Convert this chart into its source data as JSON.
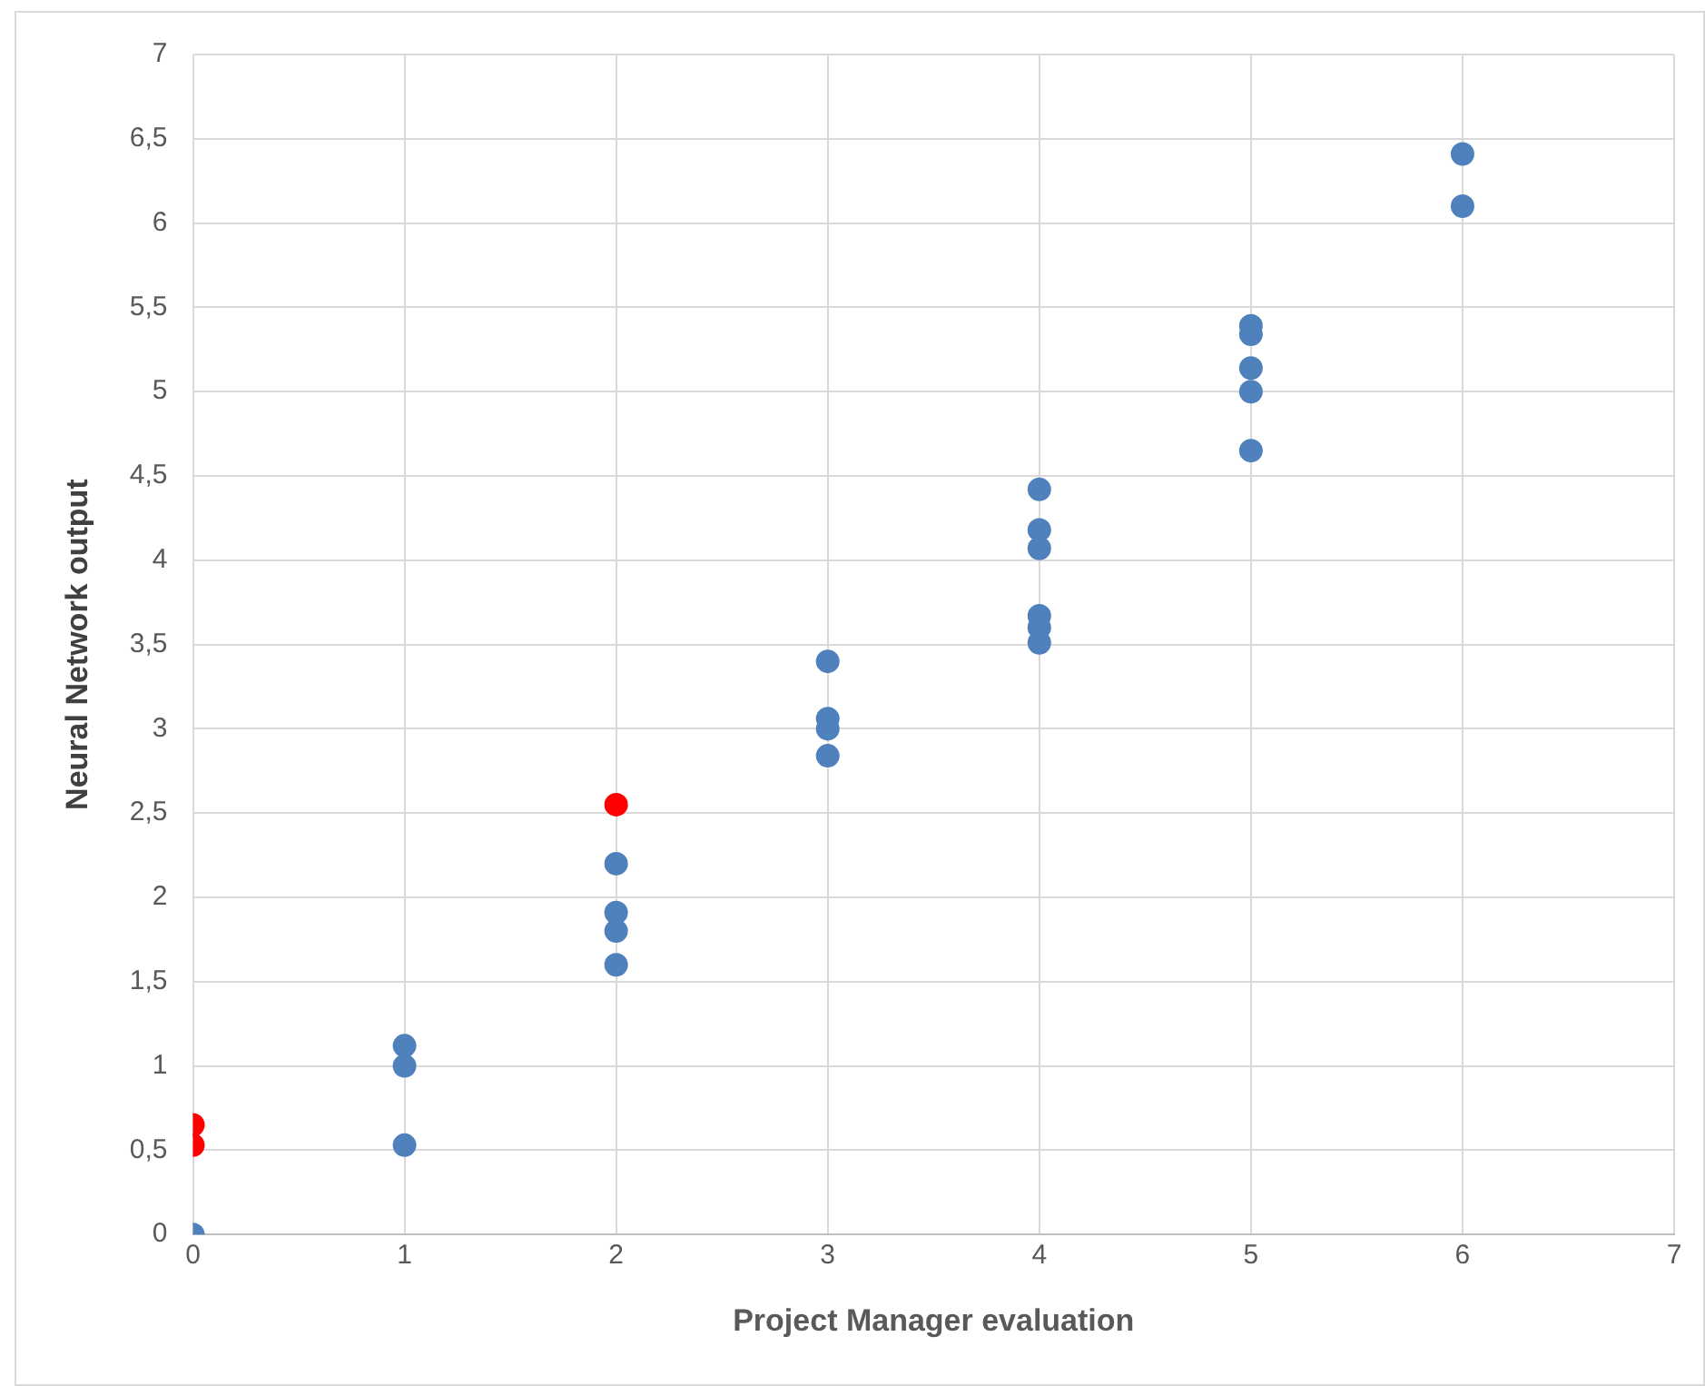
{
  "chart_data": {
    "type": "scatter",
    "xlabel": "Project Manager evaluation",
    "ylabel": "Neural Network output",
    "xlim": [
      0,
      7
    ],
    "xticks": [
      0,
      1,
      2,
      3,
      4,
      5,
      6,
      7
    ],
    "ylim": [
      0,
      7
    ],
    "yticks": [
      0,
      {
        "value": 0.5,
        "label": "0,5"
      },
      1,
      {
        "value": 1.5,
        "label": "1,5"
      },
      2,
      {
        "value": 2.5,
        "label": "2,5"
      },
      3,
      {
        "value": 3.5,
        "label": "3,5"
      },
      4,
      {
        "value": 4.5,
        "label": "4,5"
      },
      5,
      {
        "value": 5.5,
        "label": "5,5"
      },
      6,
      {
        "value": 6.5,
        "label": "6,5"
      },
      7
    ],
    "grid": true,
    "legend": false,
    "marker": "circle",
    "series": [
      {
        "color": "#4f81bd",
        "x": [
          0,
          1,
          1,
          1,
          2,
          2,
          2,
          2,
          3,
          3,
          3,
          3,
          4,
          4,
          4,
          4,
          4,
          4,
          5,
          5,
          5,
          5,
          5,
          6,
          6
        ],
        "values": [
          0,
          1.12,
          1.0,
          0.53,
          2.2,
          1.91,
          1.8,
          1.6,
          3.4,
          3.06,
          3.0,
          2.84,
          4.42,
          4.18,
          4.07,
          3.67,
          3.6,
          3.51,
          5.39,
          5.34,
          5.14,
          5.0,
          4.65,
          6.41,
          6.1
        ]
      },
      {
        "color": "#ff0000",
        "x": [
          0,
          0,
          2
        ],
        "values": [
          0.65,
          0.53,
          2.55
        ]
      }
    ]
  }
}
